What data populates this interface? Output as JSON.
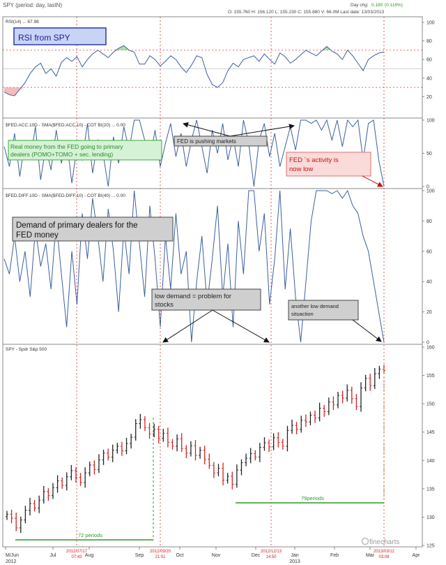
{
  "header": {
    "title": "SPY  (period: day, lastN)",
    "day_change_label": "Day chg:",
    "day_change_value": "0.180",
    "day_change_pct": "(0.116%)",
    "ohlcv": "O: 155.760  H: 156.120  L: 155.230  C: 155.880  V: 66.0M  Last date: 13/03/2013"
  },
  "colors": {
    "line": "#3a5f9f",
    "vline": "#e03030",
    "level": "#e03030",
    "period": "#2a9a2a",
    "up": "#222222",
    "down": "#d62020"
  },
  "chart_data": [
    {
      "type": "line",
      "panel": "rsi",
      "label": "RSI(14) ... 67.98",
      "yticks": [
        "100",
        "80",
        "60",
        "40",
        "20"
      ],
      "ylim": [
        0,
        100
      ],
      "levels": [
        30,
        70
      ],
      "values": [
        25,
        22,
        21,
        28,
        35,
        45,
        52,
        56,
        45,
        50,
        42,
        57,
        62,
        58,
        63,
        52,
        60,
        66,
        70,
        66,
        62,
        68,
        72,
        75,
        70,
        68,
        55,
        55,
        64,
        60,
        53,
        58,
        64,
        60,
        52,
        46,
        54,
        64,
        62,
        44,
        33,
        30,
        35,
        48,
        56,
        52,
        60,
        62,
        64,
        58,
        66,
        60,
        55,
        67,
        63,
        56,
        60,
        65,
        70,
        67,
        64,
        69,
        74,
        69,
        66,
        60,
        70,
        64,
        56,
        48,
        60,
        64,
        67,
        68
      ]
    },
    {
      "type": "line",
      "panel": "fed_acc",
      "label": "$FED.ACC.10D - SMA($FED.ACC,10) - COT BI(20) ... 0.00",
      "yticks": [
        "100",
        "50",
        "0"
      ],
      "ylim": [
        0,
        100
      ],
      "values": [
        60,
        30,
        80,
        15,
        70,
        40,
        90,
        10,
        60,
        25,
        85,
        35,
        70,
        5,
        60,
        40,
        95,
        20,
        70,
        50,
        0,
        75,
        35,
        90,
        55,
        100,
        100,
        70,
        40,
        85,
        30,
        65,
        95,
        45,
        80,
        30,
        70,
        100,
        60,
        20,
        85,
        50,
        95,
        40,
        75,
        30,
        100,
        65,
        0,
        70,
        95,
        45,
        80,
        30,
        60,
        90,
        55,
        100,
        100,
        95,
        100,
        85,
        100,
        70,
        100,
        60,
        100,
        90,
        100,
        40,
        95,
        100,
        40,
        0
      ]
    },
    {
      "type": "line",
      "panel": "fed_diff",
      "label": "$FED.DIFF.10D - SMA($FED.DIFF,10) - COT BI(40) ... 0.00",
      "yticks": [
        "100",
        "80",
        "60",
        "40",
        "20",
        "0"
      ],
      "ylim": [
        0,
        100
      ],
      "values": [
        55,
        45,
        70,
        40,
        60,
        30,
        75,
        50,
        65,
        35,
        80,
        45,
        10,
        60,
        25,
        85,
        55,
        95,
        70,
        40,
        88,
        60,
        20,
        75,
        45,
        100,
        65,
        30,
        90,
        55,
        10,
        70,
        35,
        85,
        45,
        60,
        0,
        40,
        70,
        25,
        55,
        90,
        30,
        65,
        10,
        80,
        45,
        100,
        100,
        60,
        85,
        25,
        55,
        100,
        35,
        75,
        30,
        0,
        40,
        80,
        100,
        100,
        100,
        98,
        100,
        95,
        100,
        90,
        85,
        70,
        60,
        40,
        20,
        0
      ]
    },
    {
      "type": "bar",
      "panel": "spy",
      "label": "SPY - Spdr S&p 500",
      "yticks": [
        "160",
        "155",
        "150",
        "145",
        "140",
        "135",
        "130",
        "125"
      ],
      "ylim": [
        125,
        160
      ],
      "closes": [
        130.5,
        129.8,
        128.1,
        129.5,
        131.2,
        132.4,
        131.6,
        133.0,
        134.5,
        133.8,
        135.2,
        136.4,
        135.6,
        137.1,
        138.2,
        137.0,
        136.1,
        137.8,
        139.2,
        138.4,
        140.1,
        141.3,
        140.6,
        141.8,
        142.5,
        141.7,
        143.0,
        144.1,
        146.5,
        147.2,
        145.8,
        144.7,
        145.5,
        143.9,
        144.8,
        143.2,
        142.5,
        143.8,
        142.1,
        141.3,
        142.6,
        140.9,
        141.8,
        140.2,
        139.1,
        137.8,
        138.6,
        136.5,
        137.2,
        135.8,
        138.3,
        139.6,
        140.4,
        141.2,
        140.6,
        142.3,
        143.1,
        142.4,
        144.0,
        143.2,
        142.5,
        145.3,
        146.2,
        145.5,
        147.1,
        146.8,
        148.0,
        147.5,
        149.2,
        148.6,
        150.3,
        149.8,
        151.5,
        151.0,
        152.4,
        150.9,
        149.5,
        152.8,
        154.5,
        153.2,
        155.3,
        156.1,
        155.9
      ]
    }
  ],
  "x_axis": {
    "labels": [
      "M/Jun\n2012",
      "Jul",
      "Aug",
      "Sep",
      "Oct",
      "Nov",
      "Dec",
      "Jan\n2013",
      "Feb",
      "Mar",
      "Apr"
    ]
  },
  "markers": [
    {
      "date": "2012/07/17",
      "time": "07:43"
    },
    {
      "date": "2012/09/20",
      "time": "21:51"
    },
    {
      "date": "2012/12/13",
      "time": "14:50"
    },
    {
      "date": "2013/03/12",
      "time": "03:08"
    }
  ],
  "annotations": {
    "rsi_title": "RSI from SPY",
    "real_money_line1": "Real money from the FED going to primary",
    "real_money_line2": "dealers (POMO+TOMO + sec. lending)",
    "fed_pushing": "FED is pushing markets",
    "fed_activity_line1": "FED ´s activity is",
    "fed_activity_line2": "now low",
    "demand_line1": "Demand of primary dealers for the",
    "demand_line2": "FED money",
    "low_demand_line1": "low demand = problem for",
    "low_demand_line2": "stocks",
    "another_low_line1": "another low demand",
    "another_low_line2": "situaction",
    "periods_72": "72 periods",
    "periods_79": "79periods",
    "watermark": "finecharts"
  }
}
